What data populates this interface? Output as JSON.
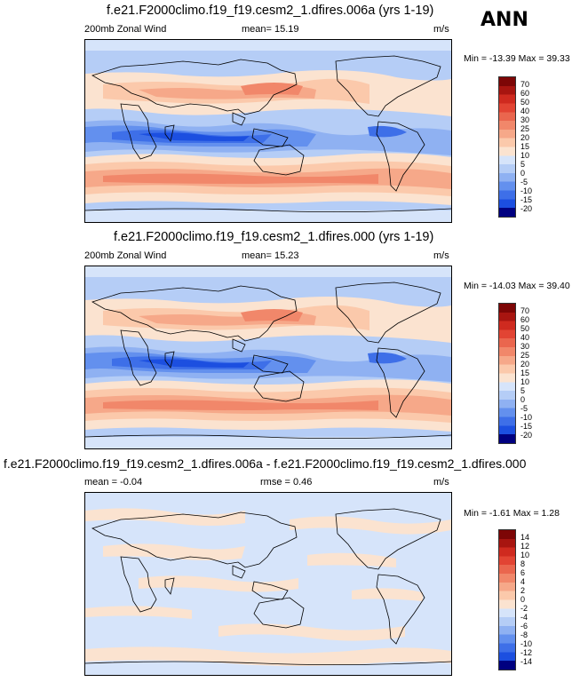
{
  "season": "ANN",
  "colors": {
    "land_line": "#000000",
    "wind_scale": [
      "#000080",
      "#0a2ec8",
      "#1c4fe0",
      "#3e6fe8",
      "#6390ee",
      "#8fb1f2",
      "#b5cdf6",
      "#d6e4fa",
      "#fbe3d0",
      "#fbc9ab",
      "#f6a889",
      "#f1876a",
      "#ea664e",
      "#e24433",
      "#cf2a1f",
      "#a81510",
      "#7d0606"
    ],
    "diff_scale": [
      "#000080",
      "#0a2ec8",
      "#1c4fe0",
      "#3e6fe8",
      "#6390ee",
      "#8fb1f2",
      "#b5cdf6",
      "#d6e4fa",
      "#fbe3d0",
      "#fbc9ab",
      "#f6a889",
      "#f1876a",
      "#ea664e",
      "#e24433",
      "#cf2a1f",
      "#a81510",
      "#7d0606"
    ]
  },
  "chart_data": [
    {
      "type": "heatmap",
      "title": "f.e21.F2000climo.f19_f19.cesm2_1.dfires.006a (yrs 1-19)",
      "variable": "200mb Zonal Wind",
      "mean_label": "mean=",
      "mean_value": "15.19",
      "units": "m/s",
      "range_label": "Min = -13.39 Max = 39.33",
      "min": -13.39,
      "max": 39.33,
      "colorbar_levels": [
        "70",
        "60",
        "50",
        "40",
        "30",
        "25",
        "20",
        "15",
        "10",
        "5",
        "0",
        "-5",
        "-10",
        "-15",
        "-20"
      ]
    },
    {
      "type": "heatmap",
      "title": "f.e21.F2000climo.f19_f19.cesm2_1.dfires.000 (yrs 1-19)",
      "variable": "200mb Zonal Wind",
      "mean_label": "mean=",
      "mean_value": "15.23",
      "units": "m/s",
      "range_label": "Min = -14.03 Max = 39.40",
      "min": -14.03,
      "max": 39.4,
      "colorbar_levels": [
        "70",
        "60",
        "50",
        "40",
        "30",
        "25",
        "20",
        "15",
        "10",
        "5",
        "0",
        "-5",
        "-10",
        "-15",
        "-20"
      ]
    },
    {
      "type": "heatmap",
      "title": "f.e21.F2000climo.f19_f19.cesm2_1.dfires.006a - f.e21.F2000climo.f19_f19.cesm2_1.dfires.000",
      "mean_label": "mean =",
      "mean_value": "-0.04",
      "rmse_label": "rmse =",
      "rmse_value": "0.46",
      "units": "m/s",
      "range_label": "Min = -1.61 Max =   1.28",
      "min": -1.61,
      "max": 1.28,
      "colorbar_levels": [
        "14",
        "12",
        "10",
        "8",
        "6",
        "4",
        "2",
        "0",
        "-2",
        "-4",
        "-6",
        "-8",
        "-10",
        "-12",
        "-14"
      ]
    }
  ]
}
